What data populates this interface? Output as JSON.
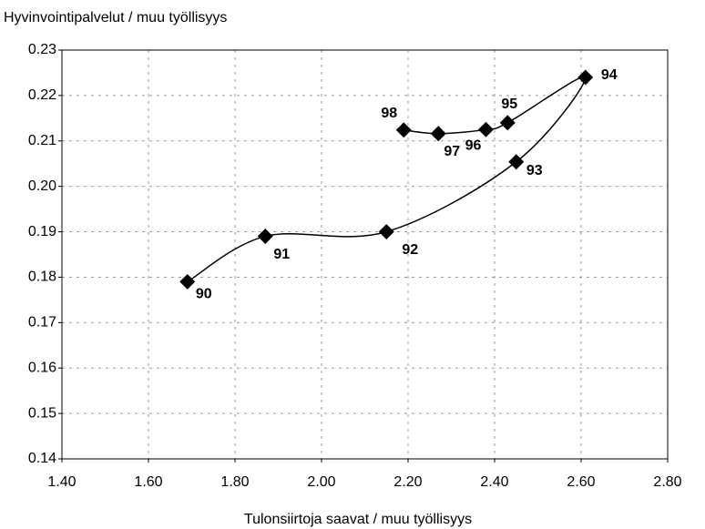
{
  "chart_data": {
    "type": "scatter-line",
    "title": "Hyvinvointipalvelut / muu työllisyys",
    "xlabel": "Tulonsiirtoja saavat / muu työllisyys",
    "x": [
      1.69,
      1.87,
      2.15,
      2.45,
      2.61,
      2.43,
      2.38,
      2.27,
      2.19
    ],
    "values": [
      0.179,
      0.189,
      0.19,
      0.2054,
      0.224,
      0.214,
      0.2125,
      0.2116,
      0.2124
    ],
    "point_labels": [
      "90",
      "91",
      "92",
      "93",
      "94",
      "95",
      "96",
      "97",
      "98"
    ],
    "color": "#000000",
    "xlim": [
      1.4,
      2.8
    ],
    "xticks": [
      {
        "value": 1.4,
        "label": "1.40"
      },
      {
        "value": 1.6,
        "label": "1.60"
      },
      {
        "value": 1.8,
        "label": "1.80"
      },
      {
        "value": 2.0,
        "label": "2.00"
      },
      {
        "value": 2.2,
        "label": "2.20"
      },
      {
        "value": 2.4,
        "label": "2.40"
      },
      {
        "value": 2.6,
        "label": "2.60"
      },
      {
        "value": 2.8,
        "label": "2.80"
      }
    ],
    "ylim": [
      0.14,
      0.23
    ],
    "yticks": [
      0.14,
      0.15,
      0.16,
      0.17,
      0.18,
      0.19,
      {
        "value": 0.2,
        "label": "0.20"
      },
      0.21,
      0.22,
      0.23
    ],
    "grid": true
  }
}
